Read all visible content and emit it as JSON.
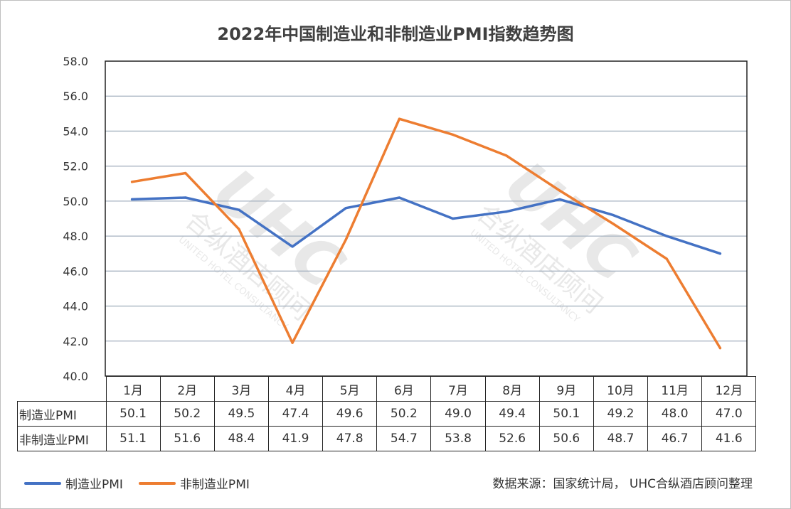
{
  "chart_data": {
    "type": "line",
    "title": "2022年中国制造业和非制造业PMI指数趋势图",
    "categories": [
      "1月",
      "2月",
      "3月",
      "4月",
      "5月",
      "6月",
      "7月",
      "8月",
      "9月",
      "10月",
      "11月",
      "12月"
    ],
    "series": [
      {
        "name": "制造业PMI",
        "color": "#4472C4",
        "values": [
          50.1,
          50.2,
          49.5,
          47.4,
          49.6,
          50.2,
          49.0,
          49.4,
          50.1,
          49.2,
          48.0,
          47.0
        ]
      },
      {
        "name": "非制造业PMI",
        "color": "#ED7D31",
        "values": [
          51.1,
          51.6,
          48.4,
          41.9,
          47.8,
          54.7,
          53.8,
          52.6,
          50.6,
          48.7,
          46.7,
          41.6
        ]
      }
    ],
    "y_ticks": [
      "40.0",
      "42.0",
      "44.0",
      "46.0",
      "48.0",
      "50.0",
      "52.0",
      "54.0",
      "56.0",
      "58.0"
    ],
    "ylim": [
      40,
      58
    ],
    "grid": true,
    "legend_position": "bottom-left"
  },
  "table": {
    "rows": [
      {
        "label": "制造业PMI",
        "values": [
          "50.1",
          "50.2",
          "49.5",
          "47.4",
          "49.6",
          "50.2",
          "49.0",
          "49.4",
          "50.1",
          "49.2",
          "48.0",
          "47.0"
        ]
      },
      {
        "label": "非制造业PMI",
        "values": [
          "51.1",
          "51.6",
          "48.4",
          "41.9",
          "47.8",
          "54.7",
          "53.8",
          "52.6",
          "50.6",
          "48.7",
          "46.7",
          "41.6"
        ]
      }
    ]
  },
  "watermark": {
    "logo": "UHC",
    "cn": "合纵酒店顾问",
    "en": "UNITED HOTEL CONSULTANCY"
  },
  "source": "数据来源：国家统计局， UHC合纵酒店顾问整理"
}
